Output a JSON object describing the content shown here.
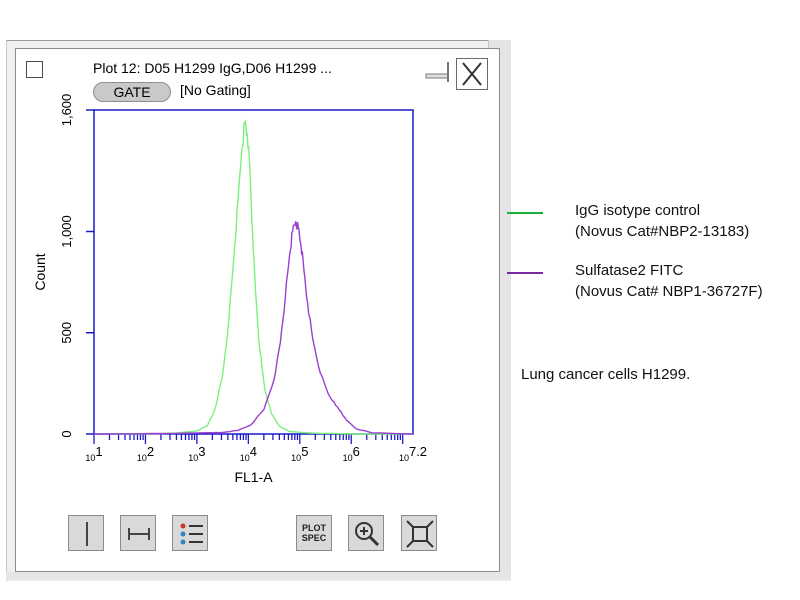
{
  "window": {
    "title": "Plot 12: D05 H1299 IgG,D06 H1299 ...",
    "gate_label": "GATE",
    "gating_status": "[No Gating]"
  },
  "toolbar": {
    "items": [
      {
        "name": "vertical-gate-tool",
        "icon": "vertical-line-icon"
      },
      {
        "name": "range-gate-tool",
        "icon": "range-icon"
      },
      {
        "name": "list-tool",
        "icon": "list-icon"
      },
      {
        "name": "plot-spec-button",
        "icon": "plot-spec-icon",
        "label_top": "PLOT",
        "label_bottom": "SPEC"
      },
      {
        "name": "zoom-button",
        "icon": "zoom-in-icon"
      },
      {
        "name": "fit-button",
        "icon": "fit-to-window-icon"
      }
    ]
  },
  "legend": [
    {
      "color": "#1aad3a",
      "line1": "IgG isotype control",
      "line2": "(Novus Cat#NBP2-13183)"
    },
    {
      "color": "#7a2aa0",
      "line1": "Sulfatase2 FITC",
      "line2": "(Novus Cat# NBP1-36727F)"
    }
  ],
  "note": "Lung cancer cells H1299.",
  "chart_data": {
    "type": "line",
    "xscale": "log",
    "xlim": [
      10,
      15848932
    ],
    "ylim": [
      0,
      1600
    ],
    "xlabel": "FL1-A",
    "ylabel": "Count",
    "ytick_labels": [
      "0",
      "500",
      "1,000",
      "1,600"
    ],
    "yticks": [
      0,
      500,
      1000,
      1600
    ],
    "xtick_labels": [
      {
        "mant": "10",
        "exp": "1",
        "value": 10
      },
      {
        "mant": "10",
        "exp": "2",
        "value": 100
      },
      {
        "mant": "10",
        "exp": "3",
        "value": 1000
      },
      {
        "mant": "10",
        "exp": "4",
        "value": 10000
      },
      {
        "mant": "10",
        "exp": "5",
        "value": 100000
      },
      {
        "mant": "10",
        "exp": "6",
        "value": 1000000
      },
      {
        "mant": "10",
        "exp": "7.2",
        "value": 15848932
      }
    ],
    "series": [
      {
        "color": "#7cf07c",
        "log_x": [
          1.0,
          2.0,
          2.6,
          3.0,
          3.2,
          3.35,
          3.5,
          3.62,
          3.72,
          3.8,
          3.87,
          3.93,
          3.98,
          4.03,
          4.08,
          4.14,
          4.22,
          4.32,
          4.45,
          4.6,
          4.8,
          5.2,
          6.0,
          7.2
        ],
        "y": [
          0,
          0,
          5,
          15,
          40,
          120,
          290,
          560,
          880,
          1150,
          1400,
          1540,
          1480,
          1300,
          1000,
          700,
          420,
          220,
          100,
          40,
          12,
          5,
          0,
          0
        ]
      },
      {
        "color": "#9a3fd0",
        "log_x": [
          1.0,
          2.5,
          3.5,
          3.8,
          4.05,
          4.3,
          4.5,
          4.62,
          4.72,
          4.8,
          4.86,
          4.92,
          4.97,
          5.02,
          5.08,
          5.15,
          5.25,
          5.4,
          5.55,
          5.7,
          5.8,
          5.9,
          6.1,
          6.4,
          7.2
        ],
        "y": [
          0,
          2,
          8,
          18,
          45,
          120,
          270,
          450,
          680,
          880,
          1000,
          1050,
          1020,
          940,
          810,
          650,
          470,
          300,
          200,
          140,
          110,
          70,
          25,
          6,
          0
        ]
      }
    ]
  }
}
